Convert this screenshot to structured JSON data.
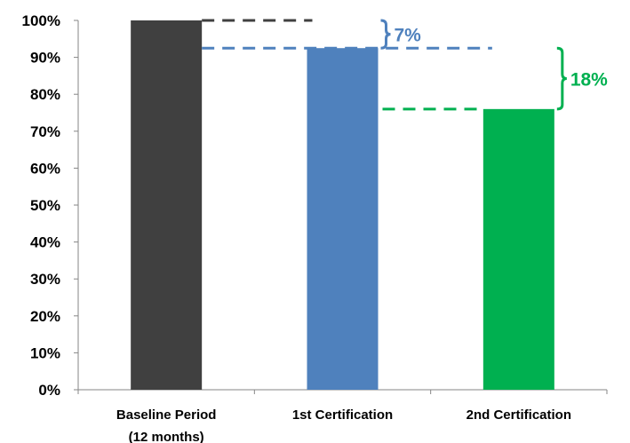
{
  "chart_data": {
    "type": "bar",
    "categories": [
      [
        "Baseline Period",
        "(12 months)"
      ],
      [
        "1st Certification"
      ],
      [
        "2nd Certification"
      ]
    ],
    "values": [
      100,
      92.5,
      76
    ],
    "bar_colors": [
      "#404040",
      "#4f81bd",
      "#00b050"
    ],
    "ylim": [
      0,
      100
    ],
    "yticks": [
      0,
      10,
      20,
      30,
      40,
      50,
      60,
      70,
      80,
      90,
      100
    ],
    "ytick_labels": [
      "0%",
      "10%",
      "20%",
      "30%",
      "40%",
      "50%",
      "60%",
      "70%",
      "80%",
      "90%",
      "100%"
    ],
    "xlabel": "",
    "ylabel": "",
    "title": "",
    "grid": false,
    "annotations": [
      {
        "text": "7%",
        "from_value": 100,
        "to_value": 92.5,
        "color": "#4f81bd"
      },
      {
        "text": "18%",
        "from_value": 92.5,
        "to_value": 76,
        "color": "#00b050"
      }
    ]
  }
}
